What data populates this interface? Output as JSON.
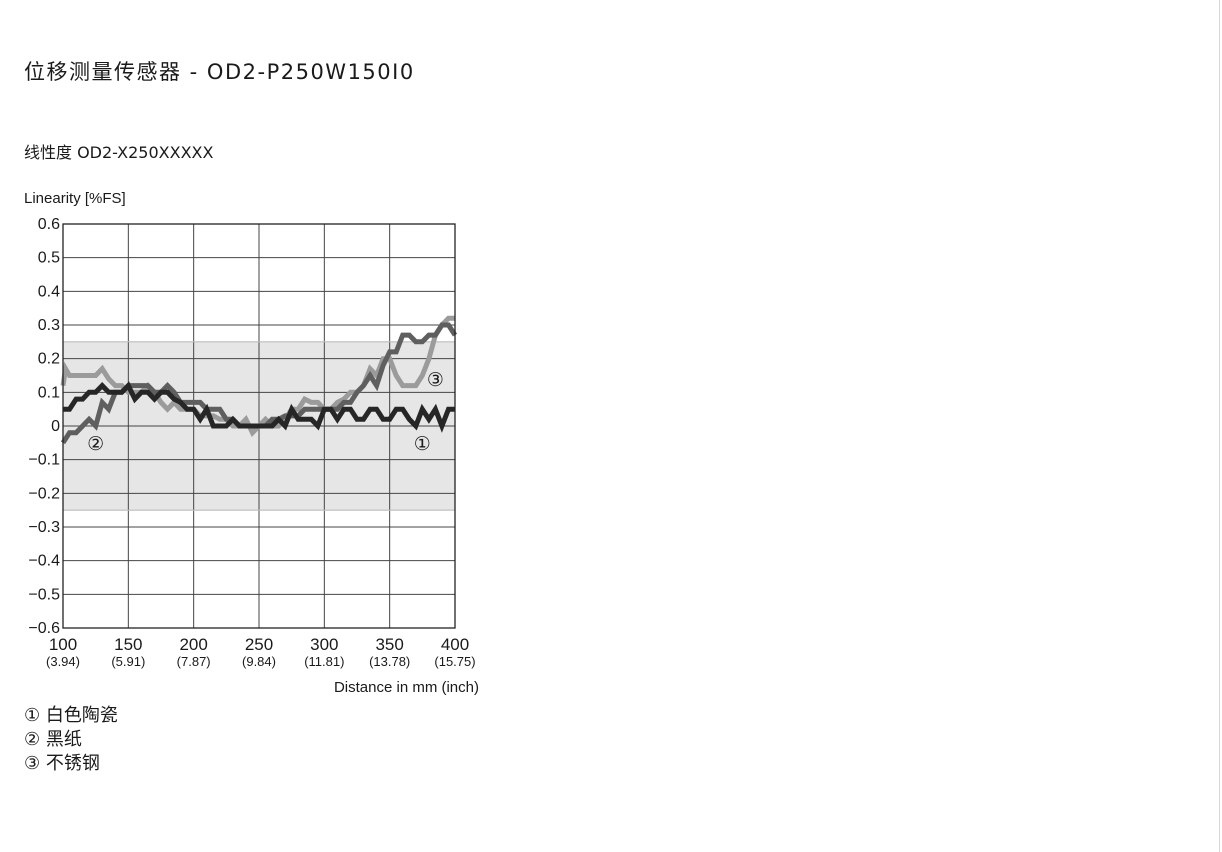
{
  "page": {
    "title": "位移测量传感器 - OD2-P250W150I0",
    "section_title": "线性度 OD2-X250XXXXX"
  },
  "chart_data": {
    "type": "line",
    "ylabel": "Linearity [%FS]",
    "xlabel": "Distance in mm (inch)",
    "xlim": [
      100,
      400
    ],
    "ylim": [
      -0.6,
      0.6
    ],
    "x_ticks": [
      {
        "value": 100,
        "label": "100",
        "sub": "(3.94)"
      },
      {
        "value": 150,
        "label": "150",
        "sub": "(5.91)"
      },
      {
        "value": 200,
        "label": "200",
        "sub": "(7.87)"
      },
      {
        "value": 250,
        "label": "250",
        "sub": "(9.84)"
      },
      {
        "value": 300,
        "label": "300",
        "sub": "(11.81)"
      },
      {
        "value": 350,
        "label": "350",
        "sub": "(13.78)"
      },
      {
        "value": 400,
        "label": "400",
        "sub": "(15.75)"
      }
    ],
    "y_ticks": [
      {
        "value": 0.6,
        "label": "0.6"
      },
      {
        "value": 0.5,
        "label": "0.5"
      },
      {
        "value": 0.4,
        "label": "0.4"
      },
      {
        "value": 0.3,
        "label": "0.3"
      },
      {
        "value": 0.2,
        "label": "0.2"
      },
      {
        "value": 0.1,
        "label": "0.1"
      },
      {
        "value": 0,
        "label": "0"
      },
      {
        "value": -0.1,
        "label": "−0.1"
      },
      {
        "value": -0.2,
        "label": "−0.2"
      },
      {
        "value": -0.3,
        "label": "−0.3"
      },
      {
        "value": -0.4,
        "label": "−0.4"
      },
      {
        "value": -0.5,
        "label": "−0.5"
      },
      {
        "value": -0.6,
        "label": "−0.6"
      }
    ],
    "grid": true,
    "tolerance_band": [
      -0.25,
      0.25
    ],
    "series": [
      {
        "marker": "③",
        "color": "#9b9b9b",
        "marker_position": [
          385,
          0.14
        ],
        "x": [
          100,
          102,
          105,
          110,
          115,
          120,
          125,
          130,
          135,
          140,
          145,
          150,
          155,
          160,
          165,
          170,
          175,
          180,
          185,
          190,
          195,
          200,
          205,
          210,
          215,
          220,
          225,
          230,
          235,
          240,
          245,
          250,
          255,
          260,
          265,
          270,
          275,
          280,
          285,
          290,
          295,
          300,
          305,
          310,
          315,
          320,
          325,
          330,
          335,
          340,
          345,
          350,
          355,
          360,
          365,
          370,
          375,
          380,
          385,
          390,
          395,
          400
        ],
        "y": [
          0.12,
          0.17,
          0.15,
          0.15,
          0.15,
          0.15,
          0.15,
          0.17,
          0.14,
          0.12,
          0.12,
          0.1,
          0.1,
          0.1,
          0.12,
          0.1,
          0.07,
          0.05,
          0.07,
          0.05,
          0.05,
          0.05,
          0.03,
          0.03,
          0.03,
          0.02,
          0.02,
          0.0,
          0.0,
          0.02,
          -0.02,
          0.0,
          0.02,
          0.0,
          0.0,
          0.02,
          0.05,
          0.05,
          0.08,
          0.07,
          0.07,
          0.05,
          0.05,
          0.07,
          0.08,
          0.1,
          0.1,
          0.12,
          0.17,
          0.15,
          0.2,
          0.2,
          0.15,
          0.12,
          0.12,
          0.12,
          0.15,
          0.2,
          0.27,
          0.3,
          0.32,
          0.32
        ]
      },
      {
        "marker": "②",
        "color": "#5f5f5f",
        "marker_position": [
          125,
          -0.05
        ],
        "x": [
          100,
          105,
          110,
          115,
          120,
          125,
          130,
          135,
          140,
          145,
          150,
          155,
          160,
          165,
          170,
          175,
          180,
          185,
          190,
          195,
          200,
          205,
          210,
          215,
          220,
          225,
          230,
          235,
          240,
          245,
          250,
          255,
          260,
          265,
          270,
          275,
          280,
          285,
          290,
          295,
          300,
          305,
          310,
          315,
          320,
          325,
          330,
          335,
          340,
          345,
          350,
          355,
          360,
          365,
          370,
          375,
          380,
          385,
          390,
          395,
          400
        ],
        "y": [
          -0.05,
          -0.02,
          -0.02,
          0.0,
          0.02,
          0.0,
          0.07,
          0.05,
          0.1,
          0.1,
          0.12,
          0.12,
          0.12,
          0.12,
          0.1,
          0.1,
          0.12,
          0.1,
          0.07,
          0.07,
          0.07,
          0.07,
          0.05,
          0.05,
          0.05,
          0.02,
          0.02,
          0.0,
          0.0,
          0.0,
          0.0,
          0.0,
          0.02,
          0.02,
          0.03,
          0.03,
          0.03,
          0.05,
          0.05,
          0.05,
          0.05,
          0.05,
          0.05,
          0.07,
          0.07,
          0.1,
          0.12,
          0.15,
          0.12,
          0.18,
          0.22,
          0.22,
          0.27,
          0.27,
          0.25,
          0.25,
          0.27,
          0.27,
          0.3,
          0.3,
          0.27
        ]
      },
      {
        "marker": "①",
        "color": "#262626",
        "marker_position": [
          375,
          -0.05
        ],
        "x": [
          100,
          105,
          110,
          115,
          120,
          125,
          130,
          135,
          140,
          145,
          150,
          155,
          160,
          165,
          170,
          175,
          180,
          185,
          190,
          195,
          200,
          205,
          210,
          215,
          220,
          225,
          230,
          235,
          240,
          245,
          250,
          255,
          260,
          265,
          270,
          275,
          280,
          285,
          290,
          295,
          300,
          305,
          310,
          315,
          320,
          325,
          330,
          335,
          340,
          345,
          350,
          355,
          360,
          365,
          370,
          375,
          380,
          385,
          390,
          395,
          400
        ],
        "y": [
          0.05,
          0.05,
          0.08,
          0.08,
          0.1,
          0.1,
          0.12,
          0.1,
          0.1,
          0.1,
          0.12,
          0.08,
          0.1,
          0.1,
          0.08,
          0.1,
          0.1,
          0.08,
          0.07,
          0.05,
          0.05,
          0.02,
          0.05,
          0.0,
          0.0,
          0.0,
          0.02,
          0.0,
          0.0,
          0.0,
          0.0,
          0.0,
          0.0,
          0.02,
          0.0,
          0.05,
          0.02,
          0.02,
          0.02,
          0.0,
          0.05,
          0.05,
          0.02,
          0.05,
          0.05,
          0.02,
          0.02,
          0.05,
          0.05,
          0.02,
          0.02,
          0.05,
          0.05,
          0.02,
          0.0,
          0.05,
          0.02,
          0.05,
          0.0,
          0.05,
          0.05
        ]
      }
    ]
  },
  "legend": [
    {
      "symbol": "①",
      "label": "白色陶瓷"
    },
    {
      "symbol": "②",
      "label": "黑纸"
    },
    {
      "symbol": "③",
      "label": "不锈钢"
    }
  ]
}
